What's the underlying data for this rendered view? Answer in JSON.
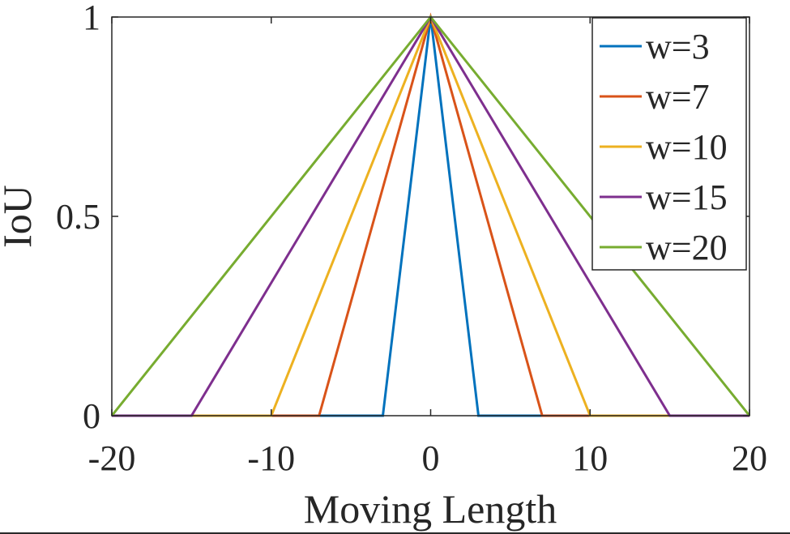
{
  "chart_data": {
    "type": "line",
    "xlabel": "Moving Length",
    "ylabel": "IoU",
    "xlim": [
      -20,
      20
    ],
    "ylim": [
      0,
      1
    ],
    "x_ticks": [
      {
        "value": -20,
        "label": "-20"
      },
      {
        "value": -10,
        "label": "-10"
      },
      {
        "value": 0,
        "label": "0"
      },
      {
        "value": 10,
        "label": "10"
      },
      {
        "value": 20,
        "label": "20"
      }
    ],
    "y_ticks": [
      {
        "value": 0,
        "label": "0"
      },
      {
        "value": 0.5,
        "label": "0.5"
      },
      {
        "value": 1,
        "label": "1"
      }
    ],
    "grid": false,
    "legend_position": "top-right",
    "series": [
      {
        "name": "w=3",
        "color": "#0072BD",
        "x": [
          -20,
          -3,
          0,
          3,
          20
        ],
        "y": [
          0,
          0,
          1,
          0,
          0
        ]
      },
      {
        "name": "w=7",
        "color": "#D95319",
        "x": [
          -20,
          -7,
          0,
          7,
          20
        ],
        "y": [
          0,
          0,
          1,
          0,
          0
        ]
      },
      {
        "name": "w=10",
        "color": "#EDB120",
        "x": [
          -20,
          -10,
          0,
          10,
          20
        ],
        "y": [
          0,
          0,
          1,
          0,
          0
        ]
      },
      {
        "name": "w=15",
        "color": "#7E2F8E",
        "x": [
          -20,
          -15,
          0,
          15,
          20
        ],
        "y": [
          0,
          0,
          1,
          0,
          0
        ]
      },
      {
        "name": "w=20",
        "color": "#77AC30",
        "x": [
          -20,
          -20,
          0,
          20,
          20
        ],
        "y": [
          0,
          0,
          1,
          0,
          0
        ]
      }
    ]
  }
}
